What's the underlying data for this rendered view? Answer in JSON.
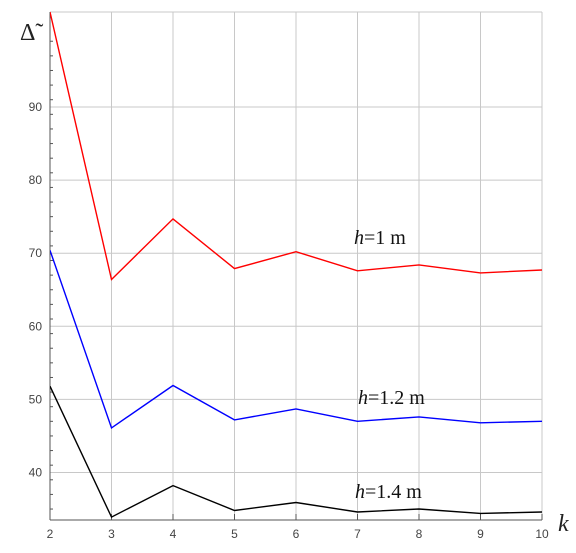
{
  "chart_data": {
    "type": "line",
    "title": "",
    "xlabel": "k",
    "ylabel": "Δ̃",
    "xlim": [
      2,
      10
    ],
    "ylim": [
      33.5,
      103
    ],
    "x_ticks": [
      2,
      3,
      4,
      5,
      6,
      7,
      8,
      9,
      10
    ],
    "y_ticks": [
      40,
      50,
      60,
      70,
      80,
      90
    ],
    "grid": true,
    "series": [
      {
        "name": "h=1 m",
        "color": "#ff0000",
        "x": [
          2,
          3,
          4,
          5,
          6,
          7,
          8,
          9,
          10
        ],
        "values": [
          103,
          66.4,
          74.7,
          67.9,
          70.2,
          67.6,
          68.4,
          67.3,
          67.7
        ]
      },
      {
        "name": "h=1.2 m",
        "color": "#0000ff",
        "x": [
          2,
          3,
          4,
          5,
          6,
          7,
          8,
          9,
          10
        ],
        "values": [
          70.4,
          46.1,
          51.9,
          47.2,
          48.7,
          47.0,
          47.6,
          46.8,
          47.0
        ]
      },
      {
        "name": "h=1.4 m",
        "color": "#000000",
        "x": [
          2,
          3,
          4,
          5,
          6,
          7,
          8,
          9,
          10
        ],
        "values": [
          51.8,
          33.9,
          38.2,
          34.8,
          35.9,
          34.6,
          35.0,
          34.4,
          34.6
        ]
      }
    ],
    "annotations": [
      {
        "series": "h=1 m",
        "var": "h",
        "rest": "=1 m"
      },
      {
        "series": "h=1.2 m",
        "var": "h",
        "rest": "=1.2 m"
      },
      {
        "series": "h=1.4 m",
        "var": "h",
        "rest": "=1.4 m"
      }
    ]
  }
}
